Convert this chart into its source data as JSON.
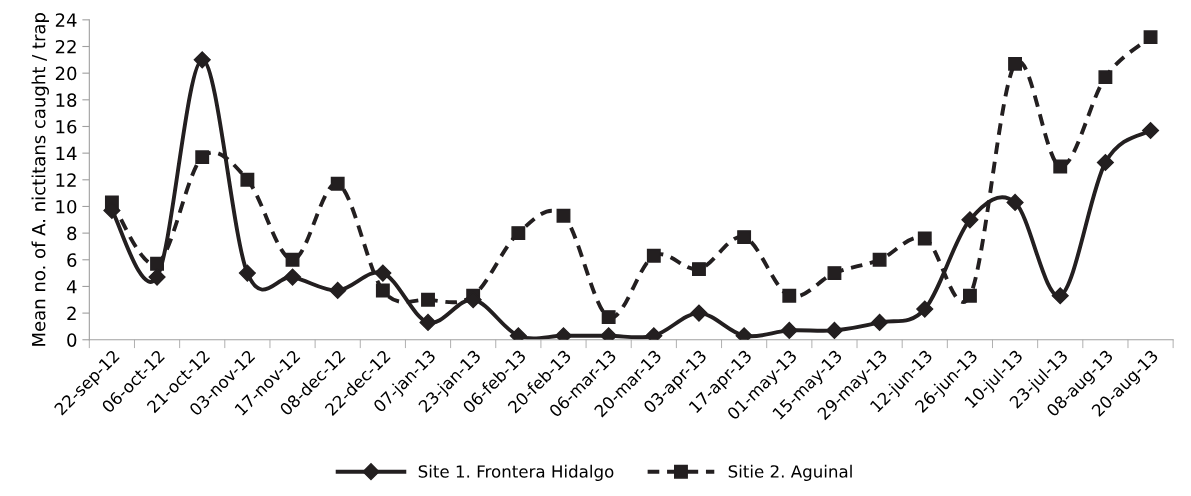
{
  "chart_data": {
    "type": "line",
    "ylabel": "Mean no. of A. nictitans caught / trap",
    "categories": [
      "22-sep-12",
      "06-oct-12",
      "21-oct-12",
      "03-nov-12",
      "17-nov-12",
      "08-dec-12",
      "22-dec-12",
      "07-jan-13",
      "23-jan-13",
      "06-feb-13",
      "20-feb-13",
      "06-mar-13",
      "20-mar-13",
      "03-apr-13",
      "17-apr-13",
      "01-may-13",
      "15-may-13",
      "29-may-13",
      "12-jun-13",
      "26-jun-13",
      "10-jul-13",
      "23-jul-13",
      "08-aug-13",
      "20-aug-13"
    ],
    "series": [
      {
        "name": "Site 1. Frontera Hidalgo",
        "color": "#231f20",
        "marker": "diamond",
        "line_style": "solid",
        "values": [
          9.7,
          4.7,
          21,
          5,
          4.7,
          3.7,
          5,
          1.3,
          3,
          0.3,
          0.3,
          0.3,
          0.3,
          2,
          0.3,
          0.7,
          0.7,
          1.3,
          2.3,
          9,
          10.3,
          3.3,
          13.3,
          15.7
        ]
      },
      {
        "name": "Sitie 2. Aguinal",
        "color": "#231f20",
        "marker": "square",
        "line_style": "dashed",
        "values": [
          10.3,
          5.7,
          13.7,
          12,
          6,
          11.7,
          3.7,
          3,
          3.3,
          8,
          9.3,
          1.7,
          6.3,
          5.3,
          7.7,
          3.3,
          5,
          6,
          7.6,
          3.3,
          20.7,
          13,
          19.7,
          22.7
        ]
      }
    ],
    "ylim": [
      0,
      24
    ],
    "yticks": [
      0,
      2,
      4,
      6,
      8,
      10,
      12,
      14,
      16,
      18,
      20,
      22,
      24
    ],
    "grid": false,
    "legend": "bottom"
  }
}
